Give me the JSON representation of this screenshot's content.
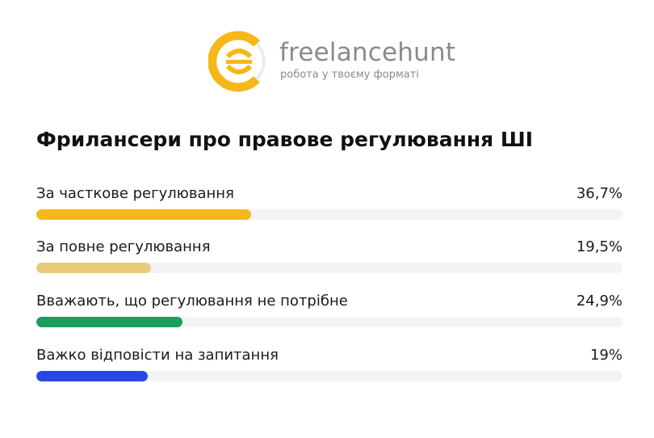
{
  "brand": {
    "name": "freelancehunt",
    "tagline": "робота у твоєму форматі",
    "logo_color": "#f6b818"
  },
  "chart_data": {
    "type": "bar",
    "title": "Фрилансери про правове регулювання ШІ",
    "xlim": [
      0,
      100
    ],
    "categories": [
      "За часткове регулювання",
      "За повне регулювання",
      "Вважають, що регулювання не потрібне",
      "Важко відповісти на запитання"
    ],
    "values": [
      36.7,
      19.5,
      24.9,
      19
    ],
    "value_labels": [
      "36,7%",
      "19,5%",
      "24,9%",
      "19%"
    ],
    "colors": [
      "#f6b818",
      "#e8cc7c",
      "#1a9e5c",
      "#2547e3"
    ],
    "track_color": "#f3f3f6",
    "grid": false,
    "legend": "none"
  }
}
